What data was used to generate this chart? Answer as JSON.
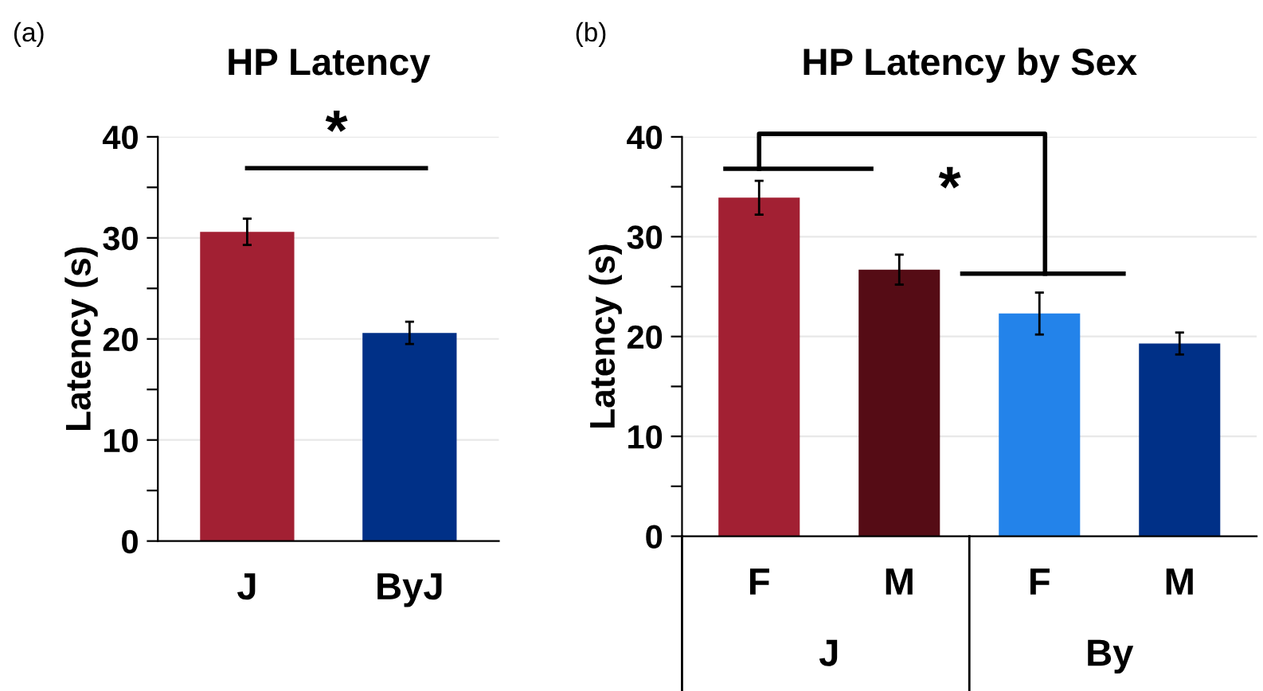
{
  "chart_data": [
    {
      "type": "bar",
      "title": "HP Latency",
      "ylabel": "Latency (s)",
      "categories": [
        "J",
        "ByJ"
      ],
      "values": [
        30.6,
        20.6
      ],
      "errors": [
        1.3,
        1.1
      ],
      "colors": [
        "#a22033",
        "#003087"
      ],
      "ylim": [
        0,
        40
      ],
      "yticks": [
        0,
        {
          "value": 5,
          "label": null
        },
        10,
        {
          "value": 15,
          "label": null
        },
        20,
        {
          "value": 25,
          "label": null
        },
        30,
        {
          "value": 35,
          "label": null
        },
        40
      ],
      "grid": "y",
      "annotations": [
        "(a)",
        "*"
      ]
    },
    {
      "type": "bar",
      "title": "HP Latency by Sex",
      "ylabel": "Latency (s)",
      "categories": [
        "F",
        "M",
        "F",
        "M"
      ],
      "values": [
        33.9,
        26.7,
        22.3,
        19.3
      ],
      "errors": [
        1.7,
        1.5,
        2.1,
        1.1
      ],
      "colors": [
        "#a22033",
        "#550c15",
        "#2383ea",
        "#003087"
      ],
      "ylim": [
        0,
        40
      ],
      "yticks": [
        0,
        {
          "value": 5,
          "label": null
        },
        10,
        {
          "value": 15,
          "label": null
        },
        20,
        {
          "value": 25,
          "label": null
        },
        30,
        {
          "value": 35,
          "label": null
        },
        40
      ],
      "grid": "y",
      "annotations": [
        "(b)",
        "*",
        "J",
        "By"
      ]
    }
  ]
}
